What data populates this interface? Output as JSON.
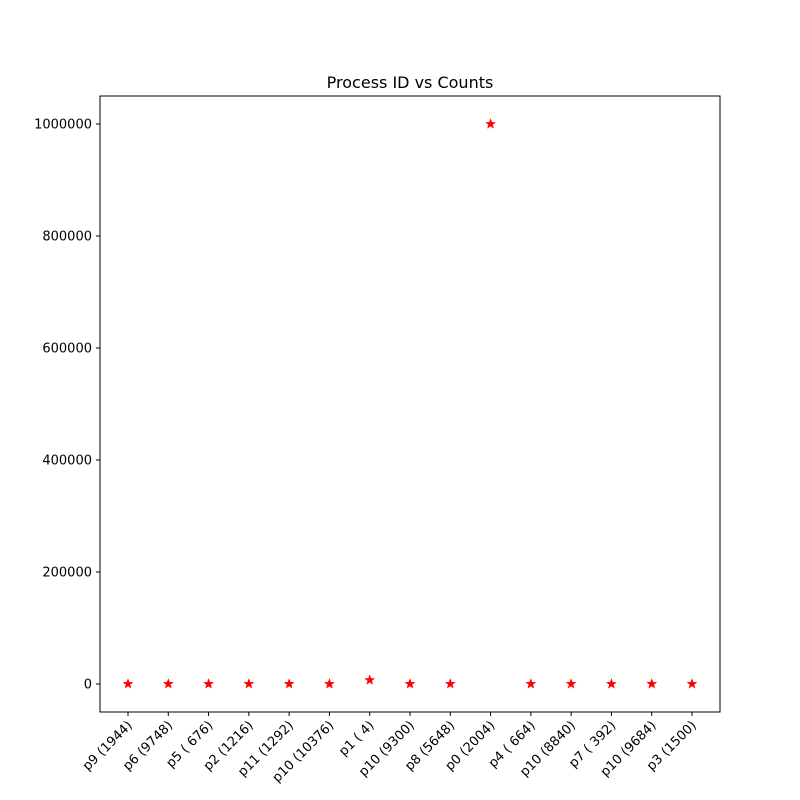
{
  "chart_data": {
    "type": "scatter",
    "title": "Process ID vs Counts",
    "xlabel": "",
    "ylabel": "",
    "categories": [
      "p9 (1944)",
      "p6 (9748)",
      "p5 ( 676)",
      "p2 (1216)",
      "p11 (1292)",
      "p10 (10376)",
      "p1 ( 4)",
      "p10 (9300)",
      "p8 (5648)",
      "p0 (2004)",
      "p4 ( 664)",
      "p10 (8840)",
      "p7 ( 392)",
      "p10 (9684)",
      "p3 (1500)"
    ],
    "values": [
      120,
      150,
      100,
      130,
      140,
      110,
      7000,
      160,
      120,
      1000000,
      110,
      150,
      90,
      140,
      130
    ],
    "ylim": [
      -50000,
      1050000
    ],
    "yticks": [
      0,
      200000,
      400000,
      600000,
      800000,
      1000000
    ],
    "ytick_labels": [
      "0",
      "200000",
      "400000",
      "600000",
      "800000",
      "1000000"
    ],
    "marker": "star",
    "color": "#ff0000",
    "grid": false
  }
}
